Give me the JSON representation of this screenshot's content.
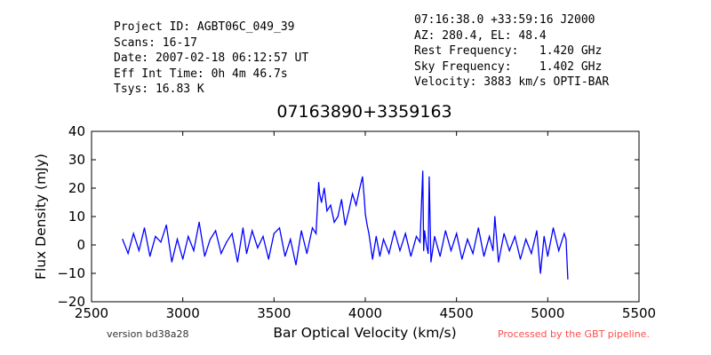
{
  "header": {
    "left": [
      "Project ID: AGBT06C_049_39",
      "Scans: 16-17",
      "Date: 2007-02-18 06:12:57 UT",
      "Eff Int Time: 0h 4m 46.7s",
      "Tsys: 16.83 K"
    ],
    "right": [
      "07:16:38.0 +33:59:16 J2000",
      "AZ: 280.4, EL: 48.4",
      "Rest Frequency:   1.420 GHz",
      "Sky Frequency:    1.402 GHz",
      "Velocity: 3883 km/s OPTI-BAR"
    ]
  },
  "footer": {
    "version": "version bd38a28",
    "pipeline": "Processed by the GBT pipeline.",
    "pipeline_color": "#ff4d4d"
  },
  "chart_data": {
    "type": "line",
    "title": "07163890+3359163",
    "xlabel": "Bar Optical Velocity (km/s)",
    "ylabel": "Flux Density (mJy)",
    "xlim": [
      2500,
      5500
    ],
    "ylim": [
      -20,
      40
    ],
    "xticks": [
      2500,
      3000,
      3500,
      4000,
      4500,
      5000,
      5500
    ],
    "yticks": [
      -20,
      -10,
      0,
      10,
      20,
      30,
      40
    ],
    "grid": false,
    "line_color": "#0000ff",
    "series": [
      {
        "x": [
          2670,
          2700,
          2730,
          2760,
          2790,
          2820,
          2850,
          2880,
          2910,
          2940,
          2970,
          3000,
          3030,
          3060,
          3090,
          3120,
          3150,
          3180,
          3210,
          3240,
          3270,
          3300,
          3330,
          3350,
          3380,
          3410,
          3440,
          3470,
          3500,
          3530,
          3560,
          3590,
          3620,
          3650,
          3680,
          3710,
          3730,
          3745,
          3750,
          3760,
          3775,
          3790,
          3810,
          3830,
          3850,
          3870,
          3890,
          3910,
          3930,
          3950,
          3970,
          3985,
          3995,
          4000,
          4010,
          4020,
          4040,
          4060,
          4080,
          4100,
          4130,
          4160,
          4190,
          4220,
          4250,
          4280,
          4300,
          4315,
          4320,
          4325,
          4335,
          4345,
          4350,
          4360,
          4380,
          4410,
          4440,
          4470,
          4500,
          4530,
          4560,
          4590,
          4620,
          4650,
          4680,
          4700,
          4710,
          4730,
          4760,
          4790,
          4820,
          4850,
          4880,
          4910,
          4940,
          4960,
          4980,
          5000,
          5030,
          5060,
          5090,
          5100,
          5110
        ],
        "y": [
          2,
          -3,
          4,
          -2,
          6,
          -4,
          3,
          1,
          7,
          -6,
          2,
          -5,
          3,
          -2,
          8,
          -4,
          2,
          5,
          -3,
          1,
          4,
          -6,
          6,
          -3,
          5,
          -1,
          3,
          -5,
          4,
          6,
          -4,
          2,
          -7,
          5,
          -3,
          6,
          4,
          22,
          18,
          15,
          20,
          12,
          14,
          8,
          10,
          16,
          7,
          12,
          18,
          14,
          20,
          24,
          16,
          11,
          7,
          4,
          -5,
          3,
          -4,
          2,
          -3,
          5,
          -2,
          4,
          -4,
          3,
          1,
          26,
          -2,
          5,
          0,
          -3,
          24,
          -6,
          3,
          -4,
          5,
          -2,
          4,
          -5,
          2,
          -3,
          6,
          -4,
          3,
          -2,
          10,
          -6,
          4,
          -2,
          3,
          -5,
          2,
          -3,
          5,
          -10,
          3,
          -4,
          6,
          -2,
          4,
          2,
          -12
        ]
      }
    ]
  }
}
